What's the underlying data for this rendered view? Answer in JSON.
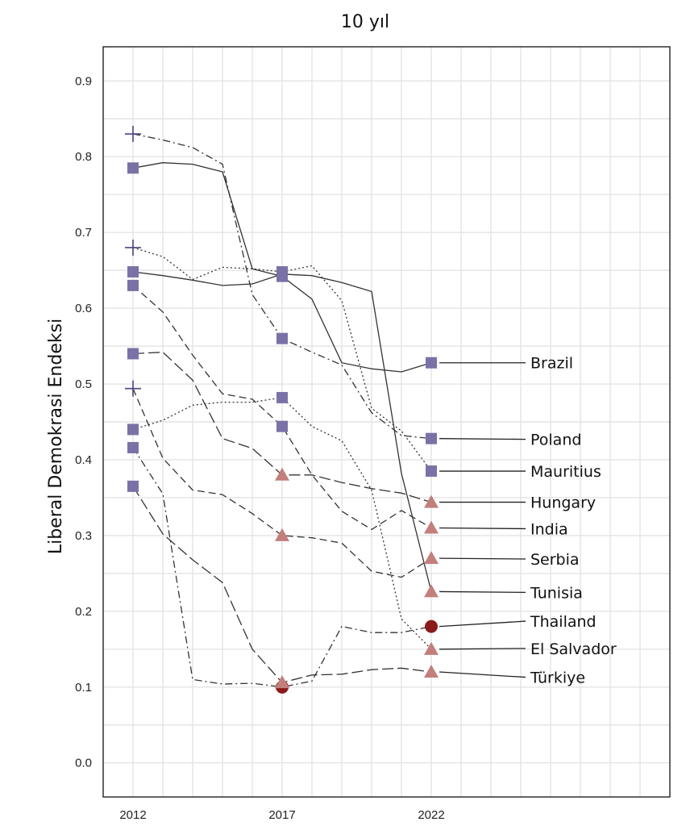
{
  "chart_data": {
    "type": "line",
    "title": "10 yıl",
    "xlabel": "",
    "ylabel": "Liberal Demokrasi Endeksi",
    "xlim": [
      2011,
      2030
    ],
    "ylim": [
      -0.045,
      0.945
    ],
    "x_ticks": [
      2012,
      2017,
      2022
    ],
    "y_ticks": [
      0.0,
      0.1,
      0.2,
      0.3,
      0.4,
      0.5,
      0.6,
      0.7,
      0.8,
      0.9
    ],
    "y_tick_labels": [
      "0.0",
      "0.1",
      "0.2",
      "0.3",
      "0.4",
      "0.5",
      "0.6",
      "0.7",
      "0.8",
      "0.9"
    ],
    "grid": true,
    "legend": "direct labels at right",
    "colors": {
      "square": "#7a72a6",
      "triangle": "#c27f7c",
      "circle": "#8b1a1a",
      "plus": "#4a4480",
      "line": "#333333"
    },
    "series": [
      {
        "name": "Brazil",
        "dash": "solid",
        "marker2012": "square",
        "marker2017": "square",
        "marker2022": "square",
        "x": [
          2012,
          2013,
          2014,
          2015,
          2016,
          2017,
          2018,
          2019,
          2020,
          2021,
          2022
        ],
        "y": [
          0.785,
          0.792,
          0.79,
          0.78,
          0.652,
          0.642,
          0.612,
          0.528,
          0.52,
          0.516,
          0.528
        ]
      },
      {
        "name": "Poland",
        "dash": "dashdot",
        "marker2012": "plus",
        "marker2017": "square",
        "marker2022": "square",
        "x": [
          2012,
          2013,
          2014,
          2015,
          2016,
          2017,
          2018,
          2019,
          2020,
          2021,
          2022
        ],
        "y": [
          0.83,
          0.822,
          0.812,
          0.79,
          0.618,
          0.56,
          0.542,
          0.525,
          0.462,
          0.432,
          0.428
        ]
      },
      {
        "name": "Mauritius",
        "dash": "dotted",
        "marker2012": "plus",
        "marker2017": "square",
        "marker2022": "square",
        "x": [
          2012,
          2013,
          2014,
          2015,
          2016,
          2017,
          2018,
          2019,
          2020,
          2021,
          2022
        ],
        "y": [
          0.68,
          0.668,
          0.638,
          0.654,
          0.652,
          0.648,
          0.656,
          0.61,
          0.468,
          0.438,
          0.385
        ]
      },
      {
        "name": "Hungary",
        "dash": "longdash",
        "marker2012": "square",
        "marker2017": "triangle",
        "marker2022": "triangle",
        "x": [
          2012,
          2013,
          2014,
          2015,
          2016,
          2017,
          2018,
          2019,
          2020,
          2021,
          2022
        ],
        "y": [
          0.54,
          0.542,
          0.505,
          0.428,
          0.415,
          0.38,
          0.38,
          0.37,
          0.362,
          0.356,
          0.344
        ]
      },
      {
        "name": "India",
        "dash": "dash",
        "marker2012": "square",
        "marker2017": "square",
        "marker2022": "triangle",
        "x": [
          2012,
          2013,
          2014,
          2015,
          2016,
          2017,
          2018,
          2019,
          2020,
          2021,
          2022
        ],
        "y": [
          0.63,
          0.595,
          0.538,
          0.487,
          0.48,
          0.444,
          0.38,
          0.332,
          0.308,
          0.333,
          0.31
        ]
      },
      {
        "name": "Serbia",
        "dash": "dash",
        "marker2012": "plus",
        "marker2017": "triangle",
        "marker2022": "triangle",
        "x": [
          2012,
          2013,
          2014,
          2015,
          2016,
          2017,
          2018,
          2019,
          2020,
          2021,
          2022
        ],
        "y": [
          0.494,
          0.402,
          0.36,
          0.354,
          0.329,
          0.3,
          0.297,
          0.29,
          0.253,
          0.245,
          0.27
        ]
      },
      {
        "name": "Tunisia",
        "dash": "solid",
        "marker2012": "square",
        "marker2017": "square",
        "marker2022": "triangle",
        "x": [
          2012,
          2013,
          2014,
          2015,
          2016,
          2017,
          2018,
          2019,
          2020,
          2021,
          2022
        ],
        "y": [
          0.648,
          0.643,
          0.637,
          0.63,
          0.632,
          0.645,
          0.643,
          0.634,
          0.622,
          0.382,
          0.226
        ]
      },
      {
        "name": "Thailand",
        "dash": "dashdot",
        "marker2012": "square",
        "marker2017": "circle",
        "marker2022": "circle",
        "x": [
          2012,
          2013,
          2014,
          2015,
          2016,
          2017,
          2018,
          2019,
          2020,
          2021,
          2022
        ],
        "y": [
          0.416,
          0.355,
          0.11,
          0.104,
          0.105,
          0.1,
          0.108,
          0.18,
          0.172,
          0.172,
          0.18
        ]
      },
      {
        "name": "El Salvador",
        "dash": "dotted",
        "marker2012": "square",
        "marker2017": "square",
        "marker2022": "triangle",
        "x": [
          2012,
          2013,
          2014,
          2015,
          2016,
          2017,
          2018,
          2019,
          2020,
          2021,
          2022
        ],
        "y": [
          0.44,
          0.452,
          0.472,
          0.476,
          0.476,
          0.482,
          0.444,
          0.425,
          0.36,
          0.19,
          0.15
        ]
      },
      {
        "name": "Türkiye",
        "dash": "longdash",
        "marker2012": "square",
        "marker2017": "triangle",
        "marker2022": "triangle",
        "x": [
          2012,
          2013,
          2014,
          2015,
          2016,
          2017,
          2018,
          2019,
          2020,
          2021,
          2022
        ],
        "y": [
          0.365,
          0.302,
          0.268,
          0.238,
          0.15,
          0.106,
          0.116,
          0.117,
          0.123,
          0.125,
          0.12
        ]
      }
    ],
    "labels": [
      {
        "name": "Brazil",
        "y": 0.528
      },
      {
        "name": "Poland",
        "y": 0.427
      },
      {
        "name": "Mauritius",
        "y": 0.385
      },
      {
        "name": "Hungary",
        "y": 0.344
      },
      {
        "name": "India",
        "y": 0.309
      },
      {
        "name": "Serbia",
        "y": 0.269
      },
      {
        "name": "Tunisia",
        "y": 0.225
      },
      {
        "name": "Thailand",
        "y": 0.187
      },
      {
        "name": "El Salvador",
        "y": 0.151
      },
      {
        "name": "Türkiye",
        "y": 0.113
      }
    ]
  }
}
